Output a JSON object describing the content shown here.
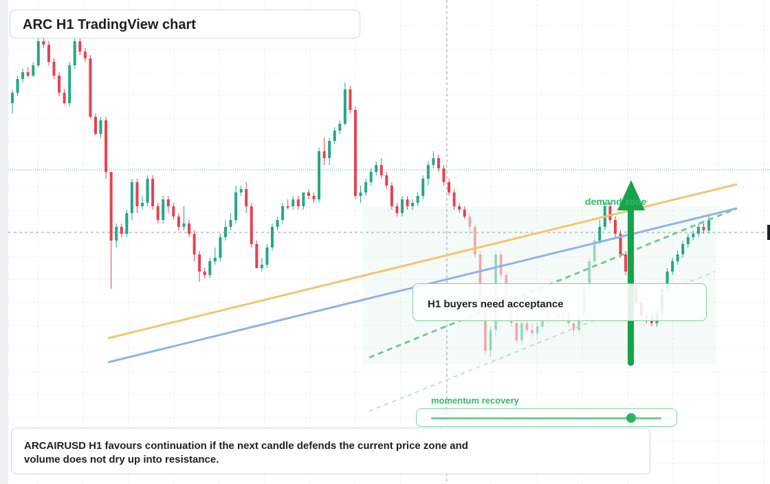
{
  "header": {
    "title": "ARC H1 TradingView chart"
  },
  "annotations": {
    "note": "H1 buyers need acceptance",
    "demand_label": "demand zone",
    "momentum_label": "momentum recovery",
    "momentum_level": 0.87,
    "summary": "ARCAIRUSD H1 favours continuation if the next candle defends the current price zone and volume does not dry up into resistance."
  },
  "colors": {
    "up": "#22a884",
    "down": "#e8414f",
    "trend_orange": "#f5c46c",
    "trend_blue": "#8fb1ee",
    "dashed_green": "#79c796",
    "arrow": "#17a34a"
  },
  "chart_data": {
    "type": "candlestick",
    "title": "ARC H1 TradingView chart",
    "symbol": "ARCAIRUSD",
    "timeframe": "H1",
    "candles": [
      [
        150,
        135,
        165,
        130
      ],
      [
        135,
        115,
        140,
        110
      ],
      [
        115,
        105,
        120,
        100
      ],
      [
        105,
        110,
        112,
        98
      ],
      [
        110,
        95,
        112,
        90
      ],
      [
        95,
        60,
        98,
        55
      ],
      [
        60,
        65,
        70,
        55
      ],
      [
        65,
        90,
        95,
        60
      ],
      [
        90,
        110,
        115,
        85
      ],
      [
        110,
        135,
        140,
        105
      ],
      [
        135,
        150,
        152,
        130
      ],
      [
        150,
        95,
        155,
        90
      ],
      [
        95,
        60,
        100,
        55
      ],
      [
        60,
        75,
        80,
        55
      ],
      [
        75,
        85,
        90,
        70
      ],
      [
        85,
        170,
        172,
        80
      ],
      [
        170,
        195,
        197,
        165
      ],
      [
        195,
        175,
        200,
        170
      ],
      [
        175,
        250,
        260,
        170
      ],
      [
        250,
        350,
        420,
        250
      ],
      [
        350,
        330,
        360,
        325
      ],
      [
        330,
        340,
        345,
        325
      ],
      [
        340,
        310,
        345,
        305
      ],
      [
        310,
        265,
        320,
        260
      ],
      [
        265,
        300,
        310,
        260
      ],
      [
        300,
        295,
        305,
        285
      ],
      [
        295,
        260,
        300,
        255
      ],
      [
        260,
        300,
        305,
        255
      ],
      [
        300,
        320,
        325,
        295
      ],
      [
        320,
        290,
        325,
        285
      ],
      [
        290,
        300,
        310,
        285
      ],
      [
        300,
        315,
        320,
        295
      ],
      [
        315,
        330,
        335,
        310
      ],
      [
        330,
        325,
        335,
        300
      ],
      [
        325,
        340,
        345,
        320
      ],
      [
        340,
        370,
        380,
        335
      ],
      [
        370,
        395,
        410,
        365
      ],
      [
        395,
        400,
        405,
        390
      ],
      [
        400,
        380,
        405,
        375
      ],
      [
        380,
        375,
        385,
        360
      ],
      [
        375,
        345,
        380,
        340
      ],
      [
        345,
        330,
        350,
        320
      ],
      [
        330,
        320,
        335,
        310
      ],
      [
        320,
        280,
        325,
        270
      ],
      [
        280,
        275,
        285,
        270
      ],
      [
        275,
        300,
        310,
        265
      ],
      [
        300,
        355,
        360,
        295
      ],
      [
        355,
        390,
        390,
        350
      ],
      [
        390,
        385,
        395,
        375
      ],
      [
        385,
        360,
        390,
        355
      ],
      [
        360,
        330,
        365,
        325
      ],
      [
        330,
        320,
        335,
        315
      ],
      [
        320,
        300,
        325,
        295
      ],
      [
        300,
        300,
        305,
        290
      ],
      [
        300,
        290,
        305,
        285
      ],
      [
        290,
        300,
        305,
        285
      ],
      [
        300,
        280,
        305,
        280
      ],
      [
        280,
        285,
        290,
        275
      ],
      [
        285,
        290,
        295,
        280
      ],
      [
        290,
        220,
        295,
        215
      ],
      [
        220,
        230,
        240,
        200
      ],
      [
        230,
        205,
        240,
        200
      ],
      [
        205,
        190,
        210,
        185
      ],
      [
        190,
        180,
        195,
        175
      ],
      [
        180,
        130,
        182,
        120
      ],
      [
        130,
        160,
        165,
        125
      ],
      [
        160,
        285,
        290,
        155
      ],
      [
        285,
        280,
        295,
        270
      ],
      [
        280,
        265,
        285,
        260
      ],
      [
        265,
        250,
        270,
        245
      ],
      [
        250,
        240,
        255,
        235
      ],
      [
        240,
        255,
        260,
        230
      ],
      [
        255,
        270,
        275,
        250
      ],
      [
        270,
        300,
        305,
        265
      ],
      [
        300,
        310,
        315,
        295
      ],
      [
        310,
        290,
        315,
        285
      ],
      [
        290,
        300,
        305,
        285
      ],
      [
        300,
        295,
        305,
        290
      ],
      [
        295,
        285,
        300,
        280
      ],
      [
        285,
        260,
        290,
        255
      ],
      [
        260,
        240,
        270,
        235
      ],
      [
        240,
        230,
        245,
        220
      ],
      [
        230,
        245,
        250,
        225
      ],
      [
        245,
        265,
        270,
        240
      ],
      [
        265,
        280,
        285,
        260
      ],
      [
        280,
        300,
        305,
        275
      ],
      [
        300,
        305,
        310,
        295
      ],
      [
        305,
        315,
        318,
        300
      ],
      [
        315,
        330,
        340,
        310
      ],
      [
        330,
        370,
        375,
        325
      ],
      [
        370,
        440,
        445,
        365
      ],
      [
        440,
        510,
        515,
        435
      ],
      [
        510,
        480,
        520,
        475
      ],
      [
        480,
        370,
        490,
        365
      ],
      [
        370,
        400,
        405,
        365
      ],
      [
        400,
        430,
        435,
        395
      ],
      [
        430,
        470,
        475,
        425
      ],
      [
        470,
        495,
        500,
        460
      ],
      [
        495,
        470,
        500,
        465
      ],
      [
        470,
        480,
        485,
        465
      ],
      [
        480,
        485,
        490,
        470
      ],
      [
        485,
        475,
        495,
        470
      ],
      [
        475,
        465,
        480,
        460
      ],
      [
        465,
        445,
        470,
        440
      ],
      [
        445,
        455,
        460,
        440
      ],
      [
        455,
        460,
        465,
        450
      ],
      [
        460,
        455,
        465,
        450
      ],
      [
        455,
        470,
        475,
        450
      ],
      [
        470,
        480,
        490,
        465
      ],
      [
        480,
        460,
        485,
        455
      ],
      [
        460,
        420,
        465,
        415
      ],
      [
        420,
        380,
        425,
        375
      ],
      [
        380,
        350,
        385,
        340
      ],
      [
        350,
        330,
        355,
        320
      ],
      [
        330,
        300,
        335,
        295
      ],
      [
        300,
        320,
        325,
        295
      ],
      [
        320,
        340,
        345,
        315
      ],
      [
        340,
        370,
        375,
        335
      ],
      [
        370,
        395,
        400,
        365
      ],
      [
        395,
        420,
        425,
        390
      ],
      [
        420,
        440,
        445,
        415
      ],
      [
        440,
        460,
        465,
        435
      ],
      [
        460,
        460,
        470,
        455
      ],
      [
        460,
        470,
        475,
        455
      ],
      [
        470,
        455,
        475,
        450
      ],
      [
        455,
        420,
        460,
        415
      ],
      [
        420,
        395,
        425,
        390
      ],
      [
        395,
        380,
        400,
        375
      ],
      [
        380,
        370,
        385,
        365
      ],
      [
        370,
        355,
        375,
        350
      ],
      [
        355,
        345,
        360,
        340
      ],
      [
        345,
        340,
        350,
        335
      ],
      [
        340,
        330,
        345,
        325
      ],
      [
        330,
        335,
        340,
        325
      ],
      [
        335,
        320,
        340,
        315
      ]
    ]
  }
}
